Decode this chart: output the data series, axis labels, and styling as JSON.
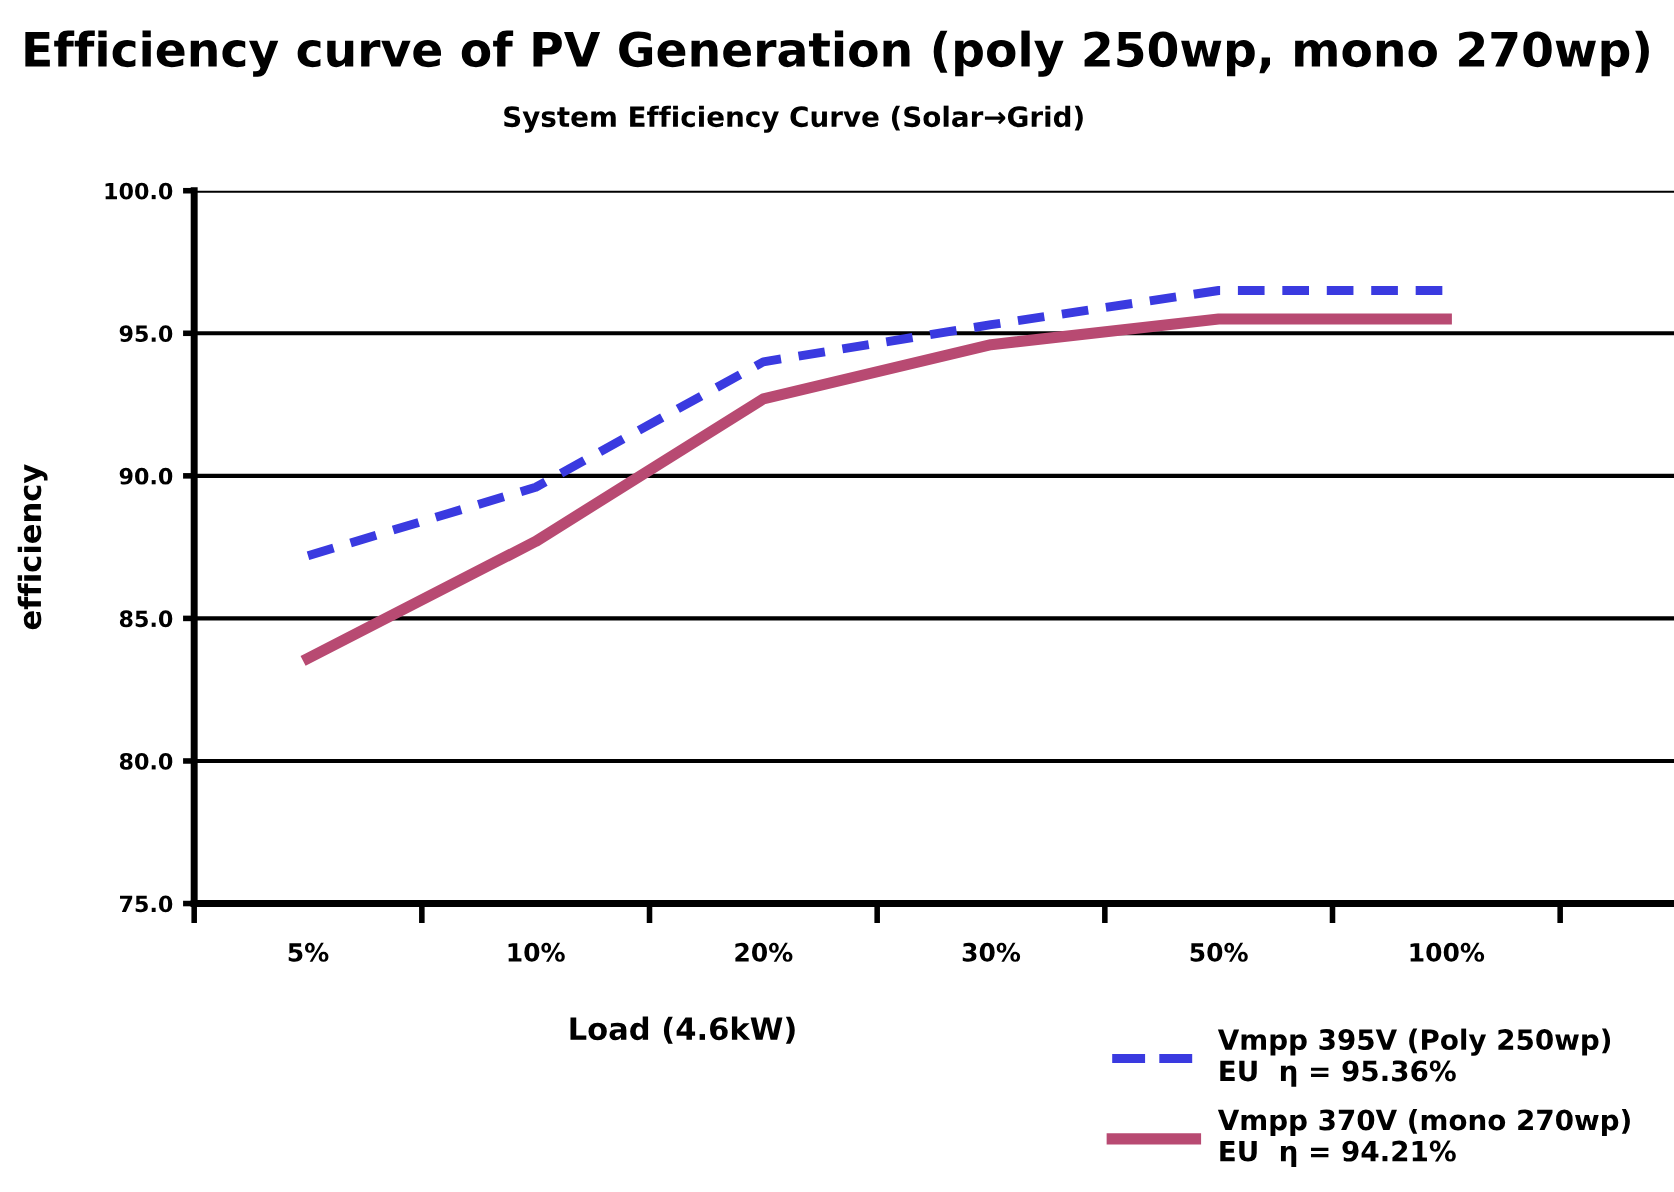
{
  "chart_data": {
    "type": "line",
    "title": "Efficiency curve of PV Generation (poly 250wp, mono 270wp)",
    "subtitle": "System Efficiency Curve (Solar→Grid)",
    "xlabel": "Load (4.6kW)",
    "ylabel": "efficiency",
    "categories": [
      "5%",
      "10%",
      "20%",
      "30%",
      "50%",
      "100%"
    ],
    "series": [
      {
        "name": "Vmpp 395V (Poly 250wp)\nEU  η = 95.36%",
        "color": "#3a3ae0",
        "line_style": "dashed",
        "values": [
          87.2,
          89.6,
          94.0,
          95.3,
          96.5,
          96.5
        ]
      },
      {
        "name": "Vmpp 370V (mono 270wp)\nEU  η = 94.21%",
        "color": "#b84a72",
        "line_style": "solid",
        "values": [
          83.6,
          87.7,
          92.7,
          94.6,
          95.5,
          95.5
        ]
      }
    ],
    "ylim": [
      75,
      100
    ],
    "yticks": [
      {
        "value": 75,
        "label": "75.0"
      },
      {
        "value": 80,
        "label": "80.0"
      },
      {
        "value": 85,
        "label": "85.0"
      },
      {
        "value": 90,
        "label": "90.0"
      },
      {
        "value": 95,
        "label": "95.0"
      },
      {
        "value": 100,
        "label": "100.0"
      }
    ],
    "grid": "y",
    "legend": "bottom right",
    "marker": "none"
  }
}
